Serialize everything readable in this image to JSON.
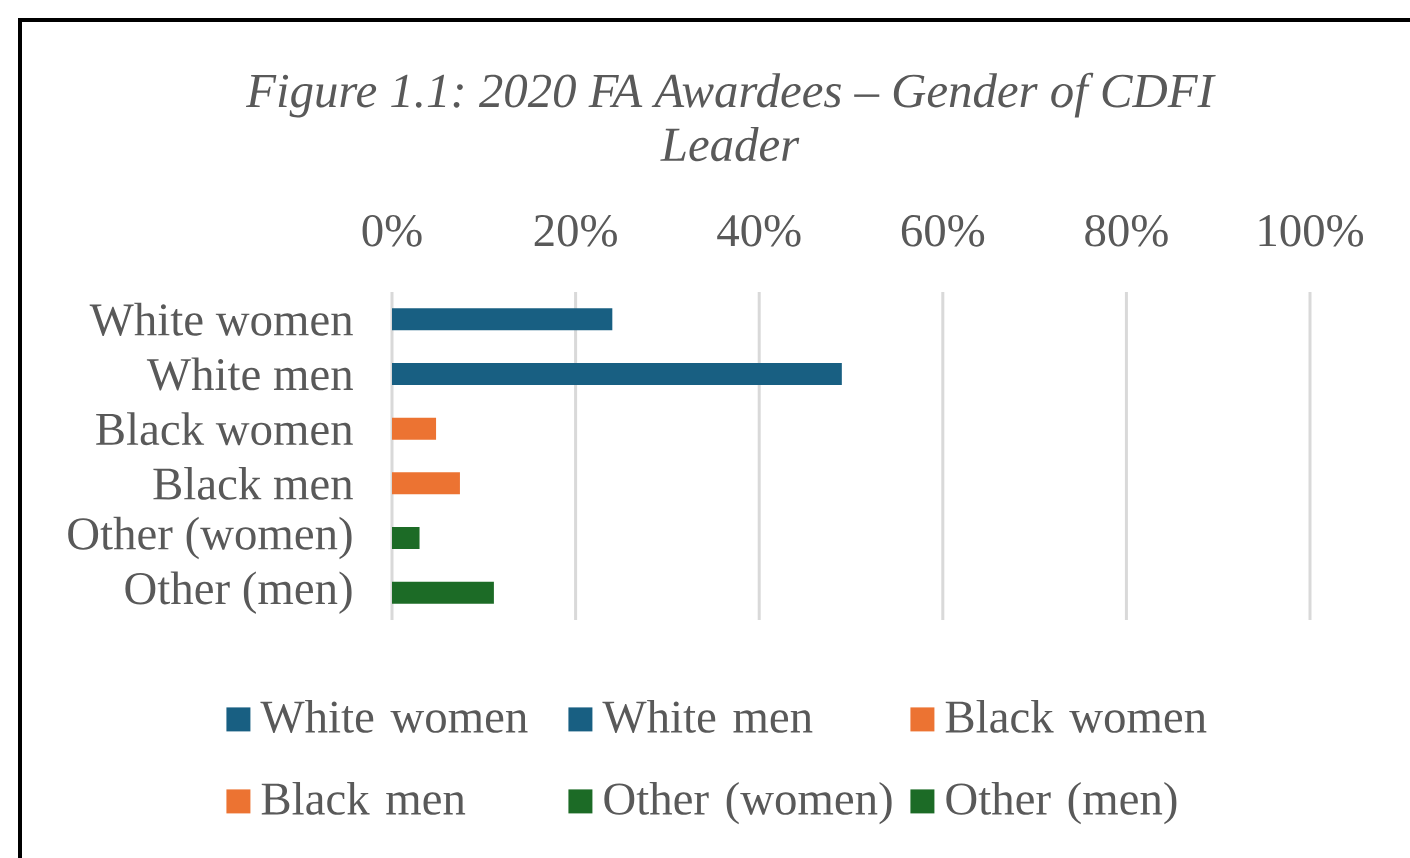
{
  "chart_data": {
    "type": "bar",
    "orientation": "horizontal",
    "title": "Figure 1.1: 2020 FA Awardees – Gender of CDFI Leader",
    "categories": [
      "White women",
      "White men",
      "Black women",
      "Black men",
      "Other (women)",
      "Other (men)"
    ],
    "series": [
      {
        "name": "White women",
        "color": "#185f82",
        "values": [
          24,
          null,
          null,
          null,
          null,
          null
        ]
      },
      {
        "name": "White men",
        "color": "#185f82",
        "values": [
          null,
          49,
          null,
          null,
          null,
          null
        ]
      },
      {
        "name": "Black women",
        "color": "#ec7332",
        "values": [
          null,
          null,
          4.8,
          null,
          null,
          null
        ]
      },
      {
        "name": "Black men",
        "color": "#ec7332",
        "values": [
          null,
          null,
          null,
          7.4,
          null,
          null
        ]
      },
      {
        "name": "Other (women)",
        "color": "#1c6b26",
        "values": [
          null,
          null,
          null,
          null,
          3,
          null
        ]
      },
      {
        "name": "Other (men)",
        "color": "#1c6b26",
        "values": [
          null,
          null,
          null,
          null,
          null,
          11.1
        ]
      }
    ],
    "xlim": [
      0,
      100
    ],
    "xticks": [
      {
        "value": 0,
        "label": "0%"
      },
      {
        "value": 20,
        "label": "20%"
      },
      {
        "value": 40,
        "label": "40%"
      },
      {
        "value": 60,
        "label": "60%"
      },
      {
        "value": 80,
        "label": "80%"
      },
      {
        "value": 100,
        "label": "100%"
      }
    ],
    "grid": "x",
    "legend": "bottom"
  }
}
